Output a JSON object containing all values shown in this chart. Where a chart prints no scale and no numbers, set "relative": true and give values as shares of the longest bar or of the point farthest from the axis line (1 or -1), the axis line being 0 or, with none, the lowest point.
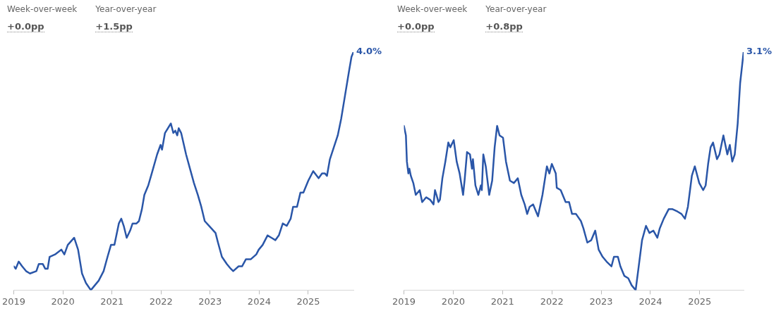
{
  "chart_data": [
    {
      "type": "line",
      "relative": true,
      "color": "#2a56a8",
      "marker": "none",
      "line_style": "solid",
      "grid": false,
      "legend": false,
      "annotations": [
        "Week-over-week",
        "Year-over-year",
        "+0.0pp",
        "+1.5pp",
        {
          "text": "4.0%",
          "x": 2025.92,
          "y": 1
        }
      ],
      "xlim": [
        2019,
        2025.92
      ],
      "xticks": [
        2019,
        2020,
        2021,
        2022,
        2023,
        2024,
        2025
      ],
      "x": [
        2019.0,
        2019.04,
        2019.1,
        2019.17,
        2019.25,
        2019.33,
        2019.46,
        2019.51,
        2019.59,
        2019.64,
        2019.69,
        2019.73,
        2019.84,
        2019.97,
        2020.03,
        2020.1,
        2020.23,
        2020.31,
        2020.39,
        2020.47,
        2020.57,
        2020.65,
        2020.73,
        2020.83,
        2020.91,
        2020.98,
        2021.05,
        2021.14,
        2021.19,
        2021.24,
        2021.3,
        2021.37,
        2021.42,
        2021.5,
        2021.55,
        2021.61,
        2021.66,
        2021.74,
        2021.81,
        2021.92,
        2021.99,
        2022.02,
        2022.08,
        2022.2,
        2022.25,
        2022.29,
        2022.33,
        2022.36,
        2022.41,
        2022.51,
        2022.59,
        2022.67,
        2022.75,
        2022.82,
        2022.89,
        2022.98,
        2023.11,
        2023.16,
        2023.24,
        2023.34,
        2023.42,
        2023.47,
        2023.58,
        2023.65,
        2023.73,
        2023.83,
        2023.94,
        2023.99,
        2024.07,
        2024.17,
        2024.25,
        2024.33,
        2024.4,
        2024.48,
        2024.56,
        2024.64,
        2024.69,
        2024.77,
        2024.84,
        2024.9,
        2025.0,
        2025.1,
        2025.21,
        2025.28,
        2025.34,
        2025.38,
        2025.44,
        2025.52,
        2025.6,
        2025.67,
        2025.75,
        2025.83,
        2025.88,
        2025.92
      ],
      "values": [
        0.1,
        0.09,
        0.12,
        0.1,
        0.08,
        0.07,
        0.08,
        0.11,
        0.11,
        0.09,
        0.09,
        0.14,
        0.15,
        0.17,
        0.15,
        0.19,
        0.22,
        0.17,
        0.07,
        0.03,
        0,
        0.02,
        0.04,
        0.08,
        0.14,
        0.19,
        0.19,
        0.28,
        0.3,
        0.27,
        0.22,
        0.25,
        0.28,
        0.28,
        0.29,
        0.34,
        0.4,
        0.44,
        0.49,
        0.57,
        0.61,
        0.59,
        0.66,
        0.7,
        0.66,
        0.67,
        0.65,
        0.68,
        0.66,
        0.57,
        0.51,
        0.45,
        0.4,
        0.35,
        0.29,
        0.27,
        0.24,
        0.2,
        0.14,
        0.11,
        0.09,
        0.08,
        0.1,
        0.1,
        0.13,
        0.13,
        0.15,
        0.17,
        0.19,
        0.23,
        0.22,
        0.21,
        0.23,
        0.28,
        0.27,
        0.3,
        0.35,
        0.35,
        0.41,
        0.41,
        0.46,
        0.5,
        0.47,
        0.49,
        0.49,
        0.48,
        0.55,
        0.6,
        0.65,
        0.72,
        0.82,
        0.92,
        0.98,
        1
      ]
    },
    {
      "type": "line",
      "relative": true,
      "color": "#2a56a8",
      "marker": "none",
      "line_style": "solid",
      "grid": false,
      "legend": false,
      "annotations": [
        "Week-over-week",
        "Year-over-year",
        "+0.0pp",
        "+0.8pp",
        {
          "text": "3.1%",
          "x": 2025.89,
          "y": 1
        }
      ],
      "xlim": [
        2019,
        2025.89
      ],
      "xticks": [
        2019,
        2020,
        2021,
        2022,
        2023,
        2024,
        2025
      ],
      "x": [
        2019.0,
        2019.04,
        2019.06,
        2019.09,
        2019.11,
        2019.14,
        2019.19,
        2019.24,
        2019.32,
        2019.37,
        2019.45,
        2019.53,
        2019.6,
        2019.63,
        2019.66,
        2019.7,
        2019.73,
        2019.78,
        2019.84,
        2019.9,
        2019.94,
        2020.01,
        2020.07,
        2020.13,
        2020.2,
        2020.23,
        2020.28,
        2020.34,
        2020.38,
        2020.4,
        2020.45,
        2020.51,
        2020.56,
        2020.58,
        2020.61,
        2020.66,
        2020.73,
        2020.79,
        2020.84,
        2020.89,
        2020.94,
        2021.01,
        2021.07,
        2021.15,
        2021.23,
        2021.31,
        2021.38,
        2021.45,
        2021.5,
        2021.55,
        2021.62,
        2021.72,
        2021.81,
        2021.9,
        2021.95,
        2022.0,
        2022.08,
        2022.1,
        2022.18,
        2022.28,
        2022.35,
        2022.41,
        2022.49,
        2022.59,
        2022.64,
        2022.72,
        2022.8,
        2022.88,
        2022.95,
        2023.03,
        2023.11,
        2023.21,
        2023.26,
        2023.34,
        2023.39,
        2023.47,
        2023.55,
        2023.62,
        2023.7,
        2023.75,
        2023.83,
        2023.91,
        2023.98,
        2024.06,
        2024.14,
        2024.19,
        2024.27,
        2024.37,
        2024.45,
        2024.55,
        2024.63,
        2024.7,
        2024.76,
        2024.84,
        2024.9,
        2024.99,
        2025.07,
        2025.12,
        2025.17,
        2025.22,
        2025.27,
        2025.35,
        2025.4,
        2025.48,
        2025.56,
        2025.61,
        2025.66,
        2025.71,
        2025.77,
        2025.82,
        2025.89
      ],
      "values": [
        0.69,
        0.65,
        0.54,
        0.49,
        0.51,
        0.48,
        0.45,
        0.4,
        0.42,
        0.37,
        0.39,
        0.38,
        0.36,
        0.42,
        0.4,
        0.37,
        0.38,
        0.47,
        0.54,
        0.62,
        0.6,
        0.63,
        0.54,
        0.49,
        0.4,
        0.46,
        0.58,
        0.57,
        0.51,
        0.55,
        0.44,
        0.4,
        0.44,
        0.42,
        0.57,
        0.52,
        0.4,
        0.46,
        0.6,
        0.69,
        0.65,
        0.64,
        0.54,
        0.46,
        0.45,
        0.47,
        0.4,
        0.36,
        0.32,
        0.35,
        0.36,
        0.31,
        0.4,
        0.52,
        0.49,
        0.53,
        0.49,
        0.43,
        0.42,
        0.37,
        0.37,
        0.32,
        0.32,
        0.29,
        0.26,
        0.2,
        0.21,
        0.25,
        0.17,
        0.14,
        0.12,
        0.1,
        0.14,
        0.14,
        0.1,
        0.06,
        0.05,
        0.02,
        0,
        0.08,
        0.21,
        0.27,
        0.24,
        0.25,
        0.22,
        0.26,
        0.3,
        0.34,
        0.34,
        0.33,
        0.32,
        0.3,
        0.35,
        0.48,
        0.52,
        0.45,
        0.42,
        0.44,
        0.53,
        0.6,
        0.62,
        0.55,
        0.57,
        0.65,
        0.57,
        0.61,
        0.54,
        0.57,
        0.7,
        0.87,
        1
      ]
    }
  ]
}
